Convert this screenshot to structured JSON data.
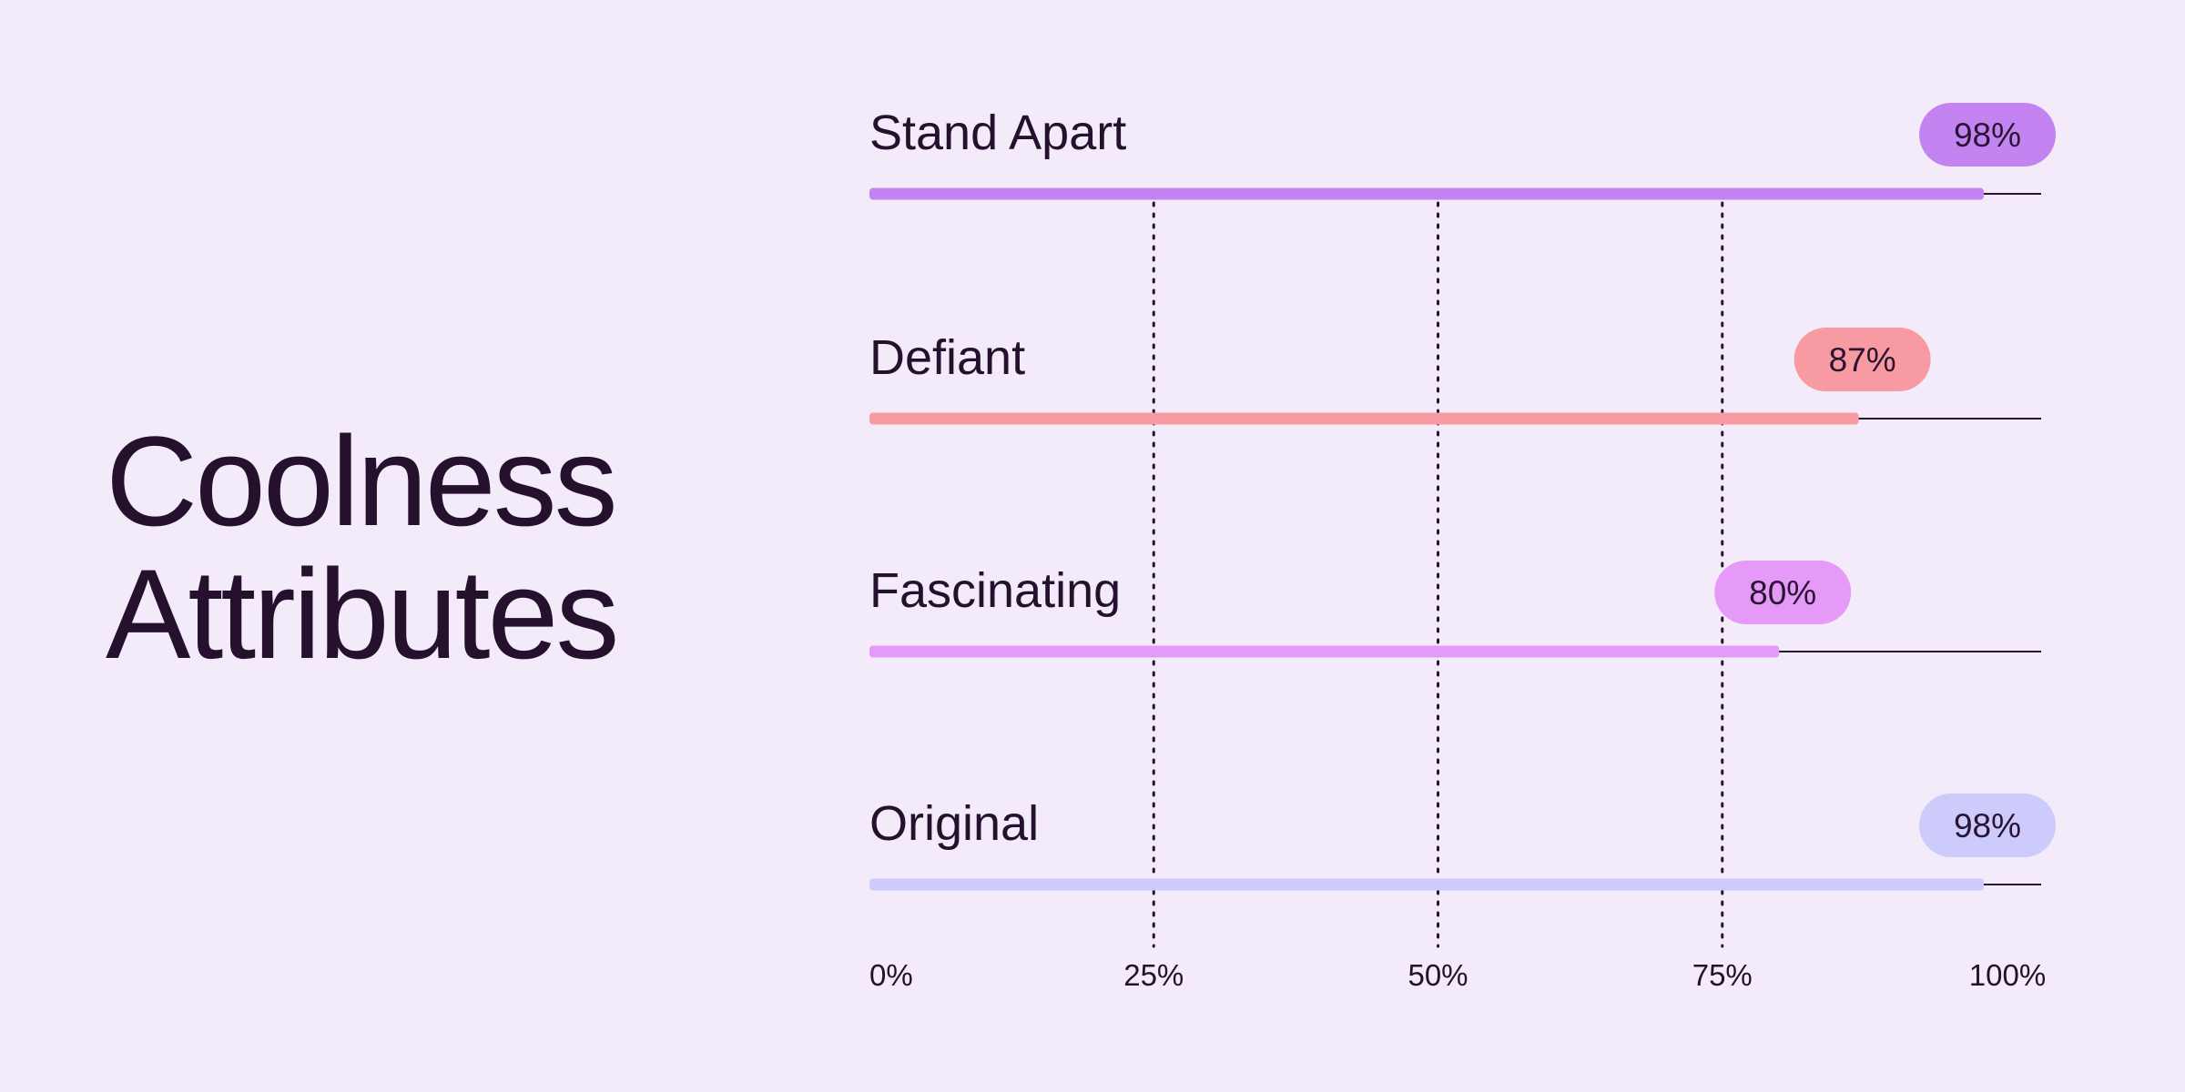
{
  "chart_data": {
    "type": "bar",
    "orientation": "horizontal",
    "title": "Coolness Attributes",
    "title_lines": [
      "Coolness",
      "Attributes"
    ],
    "categories": [
      "Stand Apart",
      "Defiant",
      "Fascinating",
      "Original"
    ],
    "values": [
      98,
      87,
      80,
      98
    ],
    "value_labels": [
      "98%",
      "87%",
      "80%",
      "98%"
    ],
    "colors": [
      "#c384f2",
      "#f79aa2",
      "#e49af6",
      "#cdcbfb"
    ],
    "xlim": [
      0,
      100
    ],
    "x_ticks": [
      0,
      25,
      50,
      75,
      100
    ],
    "x_tick_labels": [
      "0%",
      "25%",
      "50%",
      "75%",
      "100%"
    ],
    "grid": "dotted vertical lines at 25%, 50%, 75%",
    "legend": "none"
  }
}
